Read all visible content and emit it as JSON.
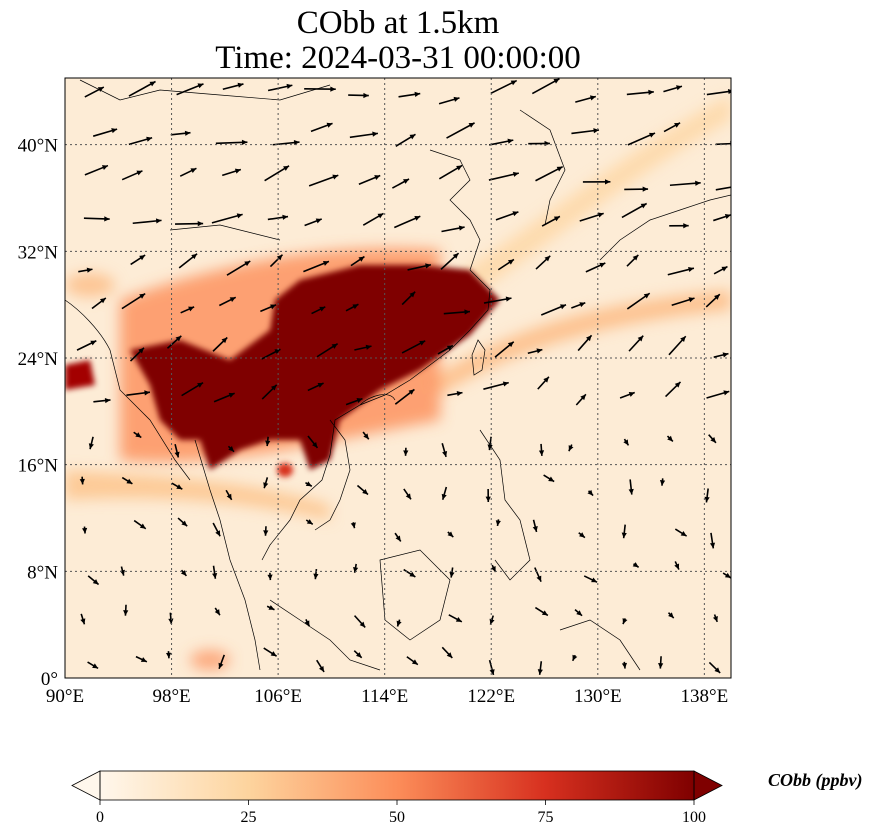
{
  "title": {
    "line1": "CObb at 1.5km",
    "line2": "Time: 2024-03-31 00:00:00"
  },
  "map": {
    "variable": "CObb",
    "level": "1.5km",
    "lon_range": [
      90,
      140
    ],
    "lat_range": [
      0,
      45
    ],
    "lon_ticks": [
      "90°E",
      "98°E",
      "106°E",
      "114°E",
      "122°E",
      "130°E",
      "138°E"
    ],
    "lat_ticks": [
      "0°",
      "8°N",
      "16°N",
      "24°N",
      "32°N",
      "40°N"
    ],
    "lon_tick_values": [
      90,
      98,
      106,
      114,
      122,
      130,
      138
    ],
    "lat_tick_values": [
      0,
      8,
      16,
      24,
      32,
      40
    ],
    "gridlines": "dotted",
    "colormap": "OrRd",
    "colors": {
      "low": "#fff7ec",
      "mid_low": "#fdd49e",
      "mid": "#fc8d59",
      "high": "#d7301f",
      "max": "#7f0000"
    }
  },
  "colorbar": {
    "label": "CObb (ppbv)",
    "ticks": [
      "0",
      "25",
      "50",
      "75",
      "100"
    ],
    "tick_values": [
      0,
      25,
      50,
      75,
      100
    ],
    "range": [
      0,
      100
    ],
    "extend": "both"
  }
}
